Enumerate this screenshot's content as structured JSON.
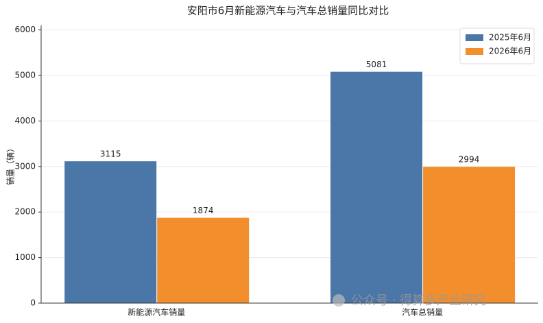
{
  "chart_data": {
    "type": "bar",
    "title": "安阳市6月新能源汽车与汽车总销量同比对比",
    "y_label": "销量（辆）",
    "categories": [
      "新能源汽车销量",
      "汽车总销量"
    ],
    "series": [
      {
        "name": "2025年6月",
        "color": "#4a76a8",
        "values": [
          3115,
          5081
        ]
      },
      {
        "name": "2026年6月",
        "color": "#f28e2b",
        "values": [
          1874,
          2994
        ]
      }
    ],
    "ylim": [
      0,
      6100
    ],
    "yticks": [
      0,
      1000,
      2000,
      3000,
      4000,
      5000,
      6000
    ],
    "grid": true,
    "legend": "upper-right",
    "watermark": "公众号 · 得算多产业研究"
  }
}
